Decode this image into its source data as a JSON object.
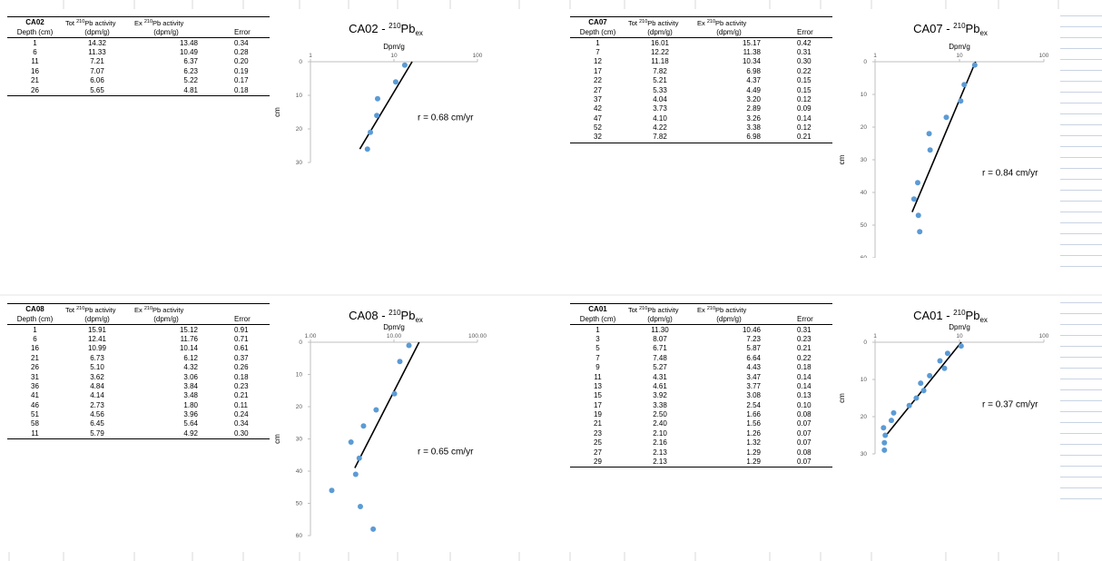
{
  "colors": {
    "point": "#5b9bd5",
    "fit_line": "#000000",
    "axis": "#bfbfbf",
    "text": "#000000",
    "grid": "#d9d9d9"
  },
  "blocks": [
    {
      "table": {
        "core": "CA02",
        "h_tot": "Tot ",
        "h_tot_sup": "210",
        "h_tot_suffix": "Pb activity",
        "h_ex": "Ex ",
        "h_ex_sup": "210",
        "h_ex_suffix": "Pb activity",
        "h_depth": "Depth (cm)",
        "h_unit1": "(dpm/g)",
        "h_unit2": "(dpm/g)",
        "h_error": "Error",
        "rows": [
          [
            "1",
            "14.32",
            "13.48",
            "0.34"
          ],
          [
            "6",
            "11.33",
            "10.49",
            "0.28"
          ],
          [
            "11",
            "7.21",
            "6.37",
            "0.20"
          ],
          [
            "16",
            "7.07",
            "6.23",
            "0.19"
          ],
          [
            "21",
            "6.06",
            "5.22",
            "0.17"
          ],
          [
            "26",
            "5.65",
            "4.81",
            "0.18"
          ]
        ]
      }
    },
    {
      "table": {
        "core": "CA07",
        "h_tot": "Tot ",
        "h_tot_sup": "210",
        "h_tot_suffix": "Pb activity",
        "h_ex": "Ex ",
        "h_ex_sup": "210",
        "h_ex_suffix": "Pb activity",
        "h_depth": "Depth (cm)",
        "h_unit1": "(dpm/g)",
        "h_unit2": "(dpm/g)",
        "h_error": "Error",
        "rows": [
          [
            "1",
            "16.01",
            "15.17",
            "0.42"
          ],
          [
            "7",
            "12.22",
            "11.38",
            "0.31"
          ],
          [
            "12",
            "11.18",
            "10.34",
            "0.30"
          ],
          [
            "17",
            "7.82",
            "6.98",
            "0.22"
          ],
          [
            "22",
            "5.21",
            "4.37",
            "0.15"
          ],
          [
            "27",
            "5.33",
            "4.49",
            "0.15"
          ],
          [
            "37",
            "4.04",
            "3.20",
            "0.12"
          ],
          [
            "42",
            "3.73",
            "2.89",
            "0.09"
          ],
          [
            "47",
            "4.10",
            "3.26",
            "0.14"
          ],
          [
            "52",
            "4.22",
            "3.38",
            "0.12"
          ],
          [
            "32",
            "7.82",
            "6.98",
            "0.21"
          ]
        ]
      }
    },
    {
      "table": {
        "core": "CA08",
        "h_tot": "Tot ",
        "h_tot_sup": "210",
        "h_tot_suffix": "Pb activity",
        "h_ex": "Ex ",
        "h_ex_sup": "210",
        "h_ex_suffix": "Pb activity",
        "h_depth": "Depth (cm)",
        "h_unit1": "(dpm/g)",
        "h_unit2": "(dpm/g)",
        "h_error": "Error",
        "rows": [
          [
            "1",
            "15.91",
            "15.12",
            "0.91"
          ],
          [
            "6",
            "12.41",
            "11.76",
            "0.71"
          ],
          [
            "16",
            "10.99",
            "10.14",
            "0.61"
          ],
          [
            "21",
            "6.73",
            "6.12",
            "0.37"
          ],
          [
            "26",
            "5.10",
            "4.32",
            "0.26"
          ],
          [
            "31",
            "3.62",
            "3.06",
            "0.18"
          ],
          [
            "36",
            "4.84",
            "3.84",
            "0.23"
          ],
          [
            "41",
            "4.14",
            "3.48",
            "0.21"
          ],
          [
            "46",
            "2.73",
            "1.80",
            "0.11"
          ],
          [
            "51",
            "4.56",
            "3.96",
            "0.24"
          ],
          [
            "58",
            "6.45",
            "5.64",
            "0.34"
          ],
          [
            "11",
            "5.79",
            "4.92",
            "0.30"
          ]
        ]
      }
    },
    {
      "table": {
        "core": "CA01",
        "h_tot": "Tot ",
        "h_tot_sup": "210",
        "h_tot_suffix": "Pb activity",
        "h_ex": "Ex ",
        "h_ex_sup": "210",
        "h_ex_suffix": "Pb activity",
        "h_depth": "Depth (cm)",
        "h_unit1": "(dpm/g)",
        "h_unit2": "(dpm/g)",
        "h_error": "Error",
        "rows": [
          [
            "1",
            "11.30",
            "10.46",
            "0.31"
          ],
          [
            "3",
            "8.07",
            "7.23",
            "0.23"
          ],
          [
            "5",
            "6.71",
            "5.87",
            "0.21"
          ],
          [
            "7",
            "7.48",
            "6.64",
            "0.22"
          ],
          [
            "9",
            "5.27",
            "4.43",
            "0.18"
          ],
          [
            "11",
            "4.31",
            "3.47",
            "0.14"
          ],
          [
            "13",
            "4.61",
            "3.77",
            "0.14"
          ],
          [
            "15",
            "3.92",
            "3.08",
            "0.13"
          ],
          [
            "17",
            "3.38",
            "2.54",
            "0.10"
          ],
          [
            "19",
            "2.50",
            "1.66",
            "0.08"
          ],
          [
            "21",
            "2.40",
            "1.56",
            "0.07"
          ],
          [
            "23",
            "2.10",
            "1.26",
            "0.07"
          ],
          [
            "25",
            "2.16",
            "1.32",
            "0.07"
          ],
          [
            "27",
            "2.13",
            "1.29",
            "0.08"
          ],
          [
            "29",
            "2.13",
            "1.29",
            "0.07"
          ]
        ]
      }
    }
  ],
  "chart_data": [
    {
      "type": "scatter",
      "title_main": "CA02 - ",
      "title_sup": "210",
      "title_base": "Pb",
      "title_sub": "ex",
      "xlabel": "Dpm/g",
      "ylabel": "cm",
      "x_scale": "log",
      "xlim": [
        1,
        100
      ],
      "x_ticks": [
        "1",
        "10",
        "100"
      ],
      "ylim": [
        0,
        30
      ],
      "y_reversed": true,
      "y_ticks": [
        "0",
        "10",
        "20",
        "30"
      ],
      "x_axis_position": "top",
      "points": [
        [
          13.48,
          1
        ],
        [
          10.49,
          6
        ],
        [
          6.37,
          11
        ],
        [
          6.23,
          16
        ],
        [
          5.22,
          21
        ],
        [
          4.81,
          26
        ]
      ],
      "fit_line": [
        [
          16.5,
          0
        ],
        [
          3.9,
          26
        ]
      ],
      "annotation": "r = 0.68 cm/yr"
    },
    {
      "type": "scatter",
      "title_main": "CA07 - ",
      "title_sup": "210",
      "title_base": "Pb",
      "title_sub": "ex",
      "xlabel": "Dpm/g",
      "ylabel": "cm",
      "x_scale": "log",
      "xlim": [
        1,
        100
      ],
      "x_ticks": [
        "1",
        "10",
        "100"
      ],
      "ylim": [
        0,
        60
      ],
      "y_reversed": true,
      "y_ticks": [
        "0",
        "10",
        "20",
        "30",
        "40",
        "50",
        "60"
      ],
      "x_axis_position": "top",
      "points": [
        [
          15.17,
          1
        ],
        [
          11.38,
          7
        ],
        [
          10.34,
          12
        ],
        [
          6.98,
          17
        ],
        [
          4.37,
          22
        ],
        [
          4.49,
          27
        ],
        [
          3.2,
          37
        ],
        [
          2.89,
          42
        ],
        [
          3.26,
          47
        ],
        [
          3.38,
          52
        ]
      ],
      "fit_line": [
        [
          15.5,
          0
        ],
        [
          2.75,
          46
        ]
      ],
      "annotation": "r = 0.84 cm/yr"
    },
    {
      "type": "scatter",
      "title_main": "CA08 - ",
      "title_sup": "210",
      "title_base": "Pb",
      "title_sub": "ex",
      "xlabel": "Dpm/g",
      "ylabel": "cm",
      "x_scale": "log",
      "xlim": [
        1,
        100
      ],
      "x_ticks": [
        "1.00",
        "10.00",
        "100.00"
      ],
      "ylim": [
        0,
        60
      ],
      "y_reversed": true,
      "y_ticks": [
        "0",
        "10",
        "20",
        "30",
        "40",
        "50",
        "60"
      ],
      "x_axis_position": "top",
      "points": [
        [
          15.12,
          1
        ],
        [
          11.76,
          6
        ],
        [
          10.14,
          16
        ],
        [
          6.12,
          21
        ],
        [
          4.32,
          26
        ],
        [
          3.06,
          31
        ],
        [
          3.84,
          36
        ],
        [
          3.48,
          41
        ],
        [
          1.8,
          46
        ],
        [
          3.96,
          51
        ],
        [
          5.64,
          58
        ]
      ],
      "fit_line": [
        [
          20,
          0
        ],
        [
          3.4,
          39
        ]
      ],
      "annotation": "r = 0.65 cm/yr"
    },
    {
      "type": "scatter",
      "title_main": "CA01 - ",
      "title_sup": "210",
      "title_base": "Pb",
      "title_sub": "ex",
      "xlabel": "Dpm/g",
      "ylabel": "cm",
      "x_scale": "log",
      "xlim": [
        1,
        100
      ],
      "x_ticks": [
        "1",
        "10",
        "100"
      ],
      "ylim": [
        0,
        30
      ],
      "y_reversed": true,
      "y_ticks": [
        "0",
        "10",
        "20",
        "30"
      ],
      "x_axis_position": "top",
      "points": [
        [
          10.46,
          1
        ],
        [
          7.23,
          3
        ],
        [
          5.87,
          5
        ],
        [
          6.64,
          7
        ],
        [
          4.43,
          9
        ],
        [
          3.47,
          11
        ],
        [
          3.77,
          13
        ],
        [
          3.08,
          15
        ],
        [
          2.54,
          17
        ],
        [
          1.66,
          19
        ],
        [
          1.56,
          21
        ],
        [
          1.26,
          23
        ],
        [
          1.32,
          25
        ],
        [
          1.29,
          27
        ],
        [
          1.29,
          29
        ]
      ],
      "fit_line": [
        [
          10.5,
          0
        ],
        [
          1.3,
          25.5
        ]
      ],
      "annotation": "r = 0.37 cm/yr"
    }
  ]
}
